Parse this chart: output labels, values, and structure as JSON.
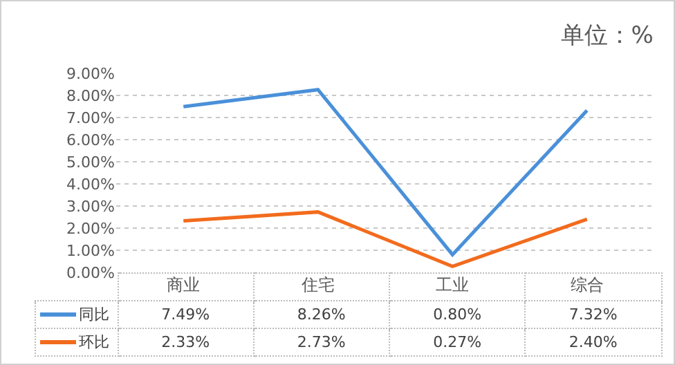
{
  "chart_data": {
    "type": "line",
    "title": "单位：%",
    "categories": [
      "商业",
      "住宅",
      "工业",
      "综合"
    ],
    "series": [
      {
        "name": "同比",
        "color": "#4a90d9",
        "values": [
          7.49,
          8.26,
          0.8,
          7.32
        ],
        "value_labels": [
          "7.49%",
          "8.26%",
          "0.80%",
          "7.32%"
        ]
      },
      {
        "name": "环比",
        "color": "#f26b1d",
        "values": [
          2.33,
          2.73,
          0.27,
          2.4
        ],
        "value_labels": [
          "2.33%",
          "2.73%",
          "0.27%",
          "2.40%"
        ]
      }
    ],
    "ylim": [
      0,
      9
    ],
    "yticks": [
      {
        "value": 0,
        "label": "0.00%"
      },
      {
        "value": 1,
        "label": "1.00%"
      },
      {
        "value": 2,
        "label": "2.00%"
      },
      {
        "value": 3,
        "label": "3.00%"
      },
      {
        "value": 4,
        "label": "4.00%"
      },
      {
        "value": 5,
        "label": "5.00%"
      },
      {
        "value": 6,
        "label": "6.00%"
      },
      {
        "value": 7,
        "label": "7.00%"
      },
      {
        "value": 8,
        "label": "8.00%"
      },
      {
        "value": 9,
        "label": "9.00%"
      }
    ],
    "grid": "y",
    "legend": "bottom",
    "marker": "none",
    "line_style": "solid"
  }
}
